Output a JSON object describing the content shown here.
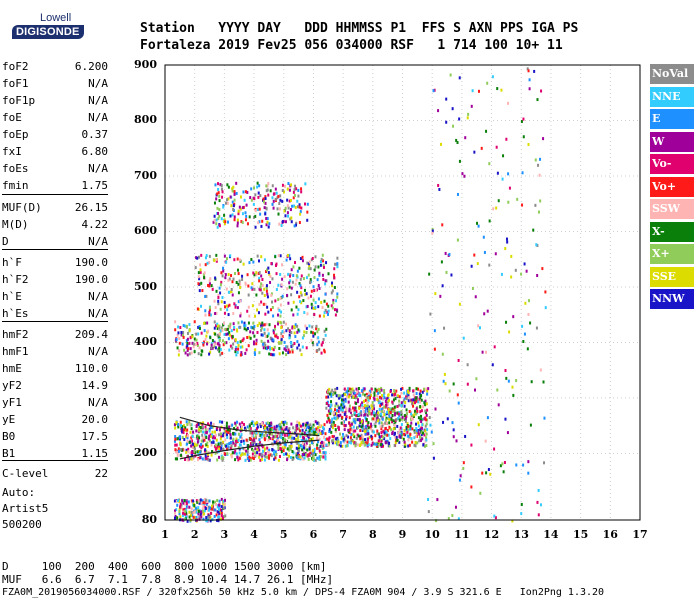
{
  "logo": {
    "line1": "Lowell",
    "line2": "DIGISONDE"
  },
  "header": {
    "row1": "Station   YYYY DAY   DDD HHMMSS P1  FFS S AXN PPS IGA PS",
    "row2": "Fortaleza 2019 Fev25 056 034000 RSF   1 714 100 10+ 11"
  },
  "params": [
    {
      "name": "foF2",
      "value": "6.200"
    },
    {
      "name": "foF1",
      "value": "N/A"
    },
    {
      "name": "foF1p",
      "value": "N/A"
    },
    {
      "name": "foE",
      "value": "N/A"
    },
    {
      "name": "foEp",
      "value": "0.37"
    },
    {
      "name": "fxI",
      "value": "6.80"
    },
    {
      "name": "foEs",
      "value": "N/A"
    },
    {
      "name": "fmin",
      "value": "1.75"
    },
    {
      "name": "MUF(D)",
      "value": "26.15"
    },
    {
      "name": "M(D)",
      "value": "4.22"
    },
    {
      "name": "D",
      "value": "N/A"
    },
    {
      "name": "h`F",
      "value": "190.0"
    },
    {
      "name": "h`F2",
      "value": "190.0"
    },
    {
      "name": "h`E",
      "value": "N/A"
    },
    {
      "name": "h`Es",
      "value": "N/A"
    },
    {
      "name": "hmF2",
      "value": "209.4"
    },
    {
      "name": "hmF1",
      "value": "N/A"
    },
    {
      "name": "hmE",
      "value": "110.0"
    },
    {
      "name": "yF2",
      "value": "14.9"
    },
    {
      "name": "yF1",
      "value": "N/A"
    },
    {
      "name": "yE",
      "value": "20.0"
    },
    {
      "name": "B0",
      "value": "17.5"
    },
    {
      "name": "B1",
      "value": "1.15"
    },
    {
      "name": "C-level",
      "value": "22"
    }
  ],
  "autoscaling": {
    "line1": "Auto:",
    "line2": "Artist5",
    "line3": "500200"
  },
  "legend": [
    {
      "label": "NoVal",
      "color": "#8c8c8c"
    },
    {
      "label": "NNE",
      "color": "#33ccff"
    },
    {
      "label": "E",
      "color": "#1e90ff"
    },
    {
      "label": "W",
      "color": "#a0009a"
    },
    {
      "label": "Vo-",
      "color": "#e0006e"
    },
    {
      "label": "Vo+",
      "color": "#ff1a1a"
    },
    {
      "label": "SSW",
      "color": "#ffb4b4"
    },
    {
      "label": "X-",
      "color": "#0a800a"
    },
    {
      "label": "X+",
      "color": "#8fcc5a"
    },
    {
      "label": "SSE",
      "color": "#dcdc00"
    },
    {
      "label": "NNW",
      "color": "#1a14c8"
    }
  ],
  "footer": {
    "d_row": "D     100  200  400  600  800 1000 1500 3000 [km]",
    "muf_row": "MUF   6.6  6.7  7.1  7.8  8.9 10.4 14.7 26.1 [MHz]",
    "file_row": "FZA0M_2019056034000.RSF / 320fx256h 50 kHz 5.0 km / DPS-4 FZA0M 904 / 3.9 S 321.6 E   Ion2Png 1.3.20"
  },
  "chart_data": {
    "type": "scatter",
    "title": "",
    "xlabel": "",
    "ylabel": "",
    "x_ticks": [
      "1",
      "2",
      "3",
      "4",
      "5",
      "6",
      "7",
      "8",
      "9",
      "10",
      "11",
      "12",
      "13",
      "14",
      "15",
      "16",
      "17"
    ],
    "y_ticks": [
      "80",
      "200",
      "300",
      "400",
      "500",
      "600",
      "700",
      "800",
      "900"
    ],
    "xlim": [
      1,
      17
    ],
    "ylim": [
      80,
      900
    ],
    "grid": true,
    "legend_position": "right",
    "traces": [
      {
        "name": "F-layer trace",
        "x": [
          1.5,
          2.0,
          3.0,
          4.0,
          5.0,
          6.0,
          6.2
        ],
        "y": [
          190,
          196,
          205,
          213,
          219,
          223,
          224
        ]
      },
      {
        "name": "Upper profile",
        "x": [
          1.5,
          2.5,
          3.5,
          4.5,
          5.5,
          6.2
        ],
        "y": [
          265,
          250,
          242,
          238,
          235,
          232
        ]
      }
    ],
    "echo_regions": [
      {
        "x": [
          1.3,
          6.4
        ],
        "y": [
          190,
          260
        ],
        "density": "high"
      },
      {
        "x": [
          6.4,
          9.8
        ],
        "y": [
          215,
          320
        ],
        "density": "high"
      },
      {
        "x": [
          1.3,
          6.4
        ],
        "y": [
          380,
          440
        ],
        "density": "medium"
      },
      {
        "x": [
          2.0,
          6.8
        ],
        "y": [
          450,
          560
        ],
        "density": "medium"
      },
      {
        "x": [
          2.6,
          5.8
        ],
        "y": [
          610,
          690
        ],
        "density": "low"
      },
      {
        "x": [
          1.3,
          3.0
        ],
        "y": [
          80,
          120
        ],
        "density": "low"
      },
      {
        "x": [
          9.8,
          13.8
        ],
        "y": [
          80,
          900
        ],
        "density": "low"
      }
    ]
  }
}
